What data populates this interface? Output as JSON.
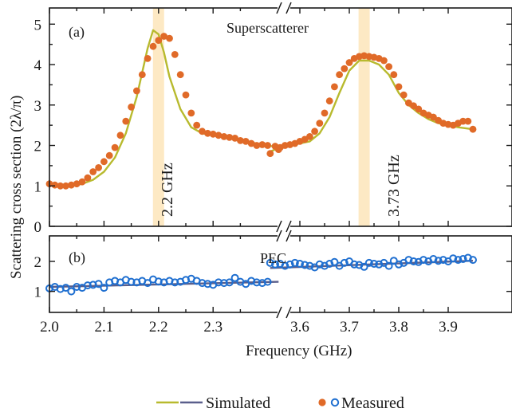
{
  "chart_data": [
    {
      "panel_label": "(a)",
      "title": "Superscatterer",
      "type": "line",
      "ylabel": "Scattering cross section (2λ/π)",
      "ylim": [
        0,
        5.4
      ],
      "yticks": [
        0,
        1,
        2,
        3,
        4,
        5
      ],
      "xlabel": "Frequency (GHz)",
      "x_segments": [
        [
          2.0,
          2.42
        ],
        [
          3.54,
          3.95
        ]
      ],
      "highlight_bands": [
        {
          "center": 2.2,
          "label": "2.2 GHz",
          "color": "#fde9c4"
        },
        {
          "center": 3.73,
          "label": "3.73 GHz",
          "color": "#fde9c4"
        }
      ],
      "series": [
        {
          "name": "Simulated",
          "style": "line",
          "color": "#b8ba2e",
          "segments": [
            {
              "x": [
                2.0,
                2.02,
                2.04,
                2.06,
                2.08,
                2.1,
                2.12,
                2.14,
                2.16,
                2.18,
                2.19,
                2.2,
                2.21,
                2.22,
                2.24,
                2.26,
                2.28,
                2.3,
                2.32,
                2.34,
                2.36,
                2.38,
                2.4,
                2.42
              ],
              "y": [
                1.05,
                1.0,
                1.0,
                1.05,
                1.15,
                1.35,
                1.7,
                2.3,
                3.2,
                4.4,
                4.85,
                4.75,
                4.3,
                3.7,
                2.9,
                2.45,
                2.3,
                2.25,
                2.2,
                2.15,
                2.1,
                2.05,
                2.0,
                1.95
              ]
            },
            {
              "x": [
                3.54,
                3.56,
                3.58,
                3.6,
                3.62,
                3.64,
                3.66,
                3.68,
                3.7,
                3.72,
                3.74,
                3.76,
                3.78,
                3.8,
                3.82,
                3.84,
                3.86,
                3.88,
                3.9,
                3.92,
                3.95
              ],
              "y": [
                1.85,
                1.95,
                2.0,
                2.05,
                2.1,
                2.3,
                2.7,
                3.3,
                3.85,
                4.1,
                4.1,
                4.0,
                3.75,
                3.3,
                3.0,
                2.8,
                2.65,
                2.55,
                2.5,
                2.45,
                2.4
              ]
            }
          ]
        },
        {
          "name": "Measured",
          "style": "markers-filled",
          "color": "#e06a28",
          "segments": [
            {
              "x": [
                2.0,
                2.01,
                2.02,
                2.03,
                2.04,
                2.05,
                2.06,
                2.07,
                2.08,
                2.09,
                2.1,
                2.11,
                2.12,
                2.13,
                2.14,
                2.15,
                2.16,
                2.17,
                2.18,
                2.19,
                2.2,
                2.21,
                2.22,
                2.23,
                2.24,
                2.25,
                2.26,
                2.27,
                2.28,
                2.29,
                2.3,
                2.31,
                2.32,
                2.33,
                2.34,
                2.35,
                2.36,
                2.37,
                2.38,
                2.39,
                2.4,
                2.42
              ],
              "y": [
                1.05,
                1.02,
                1.0,
                1.0,
                1.02,
                1.05,
                1.1,
                1.2,
                1.35,
                1.45,
                1.6,
                1.75,
                1.95,
                2.25,
                2.6,
                2.95,
                3.35,
                3.75,
                4.15,
                4.45,
                4.6,
                4.7,
                4.65,
                4.25,
                3.75,
                3.25,
                2.8,
                2.5,
                2.35,
                2.3,
                2.28,
                2.25,
                2.22,
                2.2,
                2.18,
                2.12,
                2.1,
                2.05,
                2.0,
                2.02,
                2.0,
                1.9
              ]
            },
            {
              "x": [
                3.54,
                3.55,
                3.56,
                3.57,
                3.58,
                3.59,
                3.6,
                3.61,
                3.62,
                3.63,
                3.64,
                3.65,
                3.66,
                3.67,
                3.68,
                3.69,
                3.7,
                3.71,
                3.72,
                3.73,
                3.74,
                3.75,
                3.76,
                3.77,
                3.78,
                3.79,
                3.8,
                3.81,
                3.82,
                3.83,
                3.84,
                3.85,
                3.86,
                3.87,
                3.88,
                3.89,
                3.9,
                3.91,
                3.92,
                3.93,
                3.94,
                3.95
              ],
              "y": [
                1.8,
                1.98,
                1.95,
                2.0,
                2.02,
                2.05,
                2.1,
                2.15,
                2.22,
                2.35,
                2.55,
                2.8,
                3.1,
                3.45,
                3.75,
                3.9,
                4.05,
                4.15,
                4.2,
                4.22,
                4.2,
                4.18,
                4.15,
                4.1,
                3.95,
                3.75,
                3.45,
                3.25,
                3.05,
                2.98,
                2.9,
                2.8,
                2.75,
                2.7,
                2.62,
                2.55,
                2.52,
                2.5,
                2.55,
                2.6,
                2.6,
                2.4
              ]
            }
          ]
        }
      ]
    },
    {
      "panel_label": "(b)",
      "title": "PEC",
      "type": "line",
      "ylim": [
        0.3,
        2.85
      ],
      "yticks": [
        1,
        2
      ],
      "x_segments": [
        [
          2.0,
          2.42
        ],
        [
          3.54,
          3.95
        ]
      ],
      "xticks_left": [
        "2.0",
        "2.1",
        "2.2",
        "2.3"
      ],
      "xticks_right": [
        "3.6",
        "3.7",
        "3.8",
        "3.9"
      ],
      "series": [
        {
          "name": "Simulated",
          "style": "line",
          "color": "#5a5f8c",
          "segments": [
            {
              "x": [
                2.0,
                2.42
              ],
              "y": [
                1.15,
                1.32
              ]
            },
            {
              "x": [
                3.54,
                3.95
              ],
              "y": [
                1.78,
                2.02
              ]
            }
          ]
        },
        {
          "name": "Measured",
          "style": "markers-open",
          "color": "#1f6fd0",
          "segments": [
            {
              "x": [
                2.0,
                2.01,
                2.02,
                2.03,
                2.04,
                2.05,
                2.06,
                2.07,
                2.08,
                2.09,
                2.1,
                2.11,
                2.12,
                2.13,
                2.14,
                2.15,
                2.16,
                2.17,
                2.18,
                2.19,
                2.2,
                2.21,
                2.22,
                2.23,
                2.24,
                2.25,
                2.26,
                2.27,
                2.28,
                2.29,
                2.3,
                2.31,
                2.32,
                2.33,
                2.34,
                2.35,
                2.36,
                2.37,
                2.38,
                2.39,
                2.4
              ],
              "y": [
                1.1,
                1.15,
                1.08,
                1.12,
                1.0,
                1.15,
                1.12,
                1.2,
                1.22,
                1.25,
                1.12,
                1.3,
                1.35,
                1.3,
                1.38,
                1.32,
                1.3,
                1.35,
                1.28,
                1.4,
                1.33,
                1.3,
                1.35,
                1.3,
                1.32,
                1.38,
                1.42,
                1.35,
                1.28,
                1.25,
                1.22,
                1.3,
                1.28,
                1.3,
                1.45,
                1.32,
                1.25,
                1.35,
                1.3,
                1.28,
                1.32
              ]
            },
            {
              "x": [
                3.54,
                3.55,
                3.56,
                3.57,
                3.58,
                3.59,
                3.6,
                3.61,
                3.62,
                3.63,
                3.64,
                3.65,
                3.66,
                3.67,
                3.68,
                3.69,
                3.7,
                3.71,
                3.72,
                3.73,
                3.74,
                3.75,
                3.76,
                3.77,
                3.78,
                3.79,
                3.8,
                3.81,
                3.82,
                3.83,
                3.84,
                3.85,
                3.86,
                3.87,
                3.88,
                3.89,
                3.9,
                3.91,
                3.92,
                3.93,
                3.94,
                3.95
              ],
              "y": [
                1.95,
                1.9,
                1.92,
                1.85,
                1.9,
                1.95,
                1.92,
                1.88,
                1.85,
                1.8,
                1.9,
                1.85,
                1.92,
                1.98,
                1.85,
                1.95,
                2.0,
                1.9,
                1.88,
                1.82,
                1.95,
                1.92,
                1.9,
                1.95,
                1.85,
                2.02,
                1.9,
                1.95,
                2.05,
                2.0,
                1.98,
                2.05,
                2.0,
                2.08,
                2.02,
                2.05,
                2.0,
                2.1,
                2.05,
                2.08,
                2.12,
                2.05
              ]
            }
          ]
        }
      ]
    }
  ],
  "legend": {
    "simulated_label": "Simulated",
    "measured_label": "Measured",
    "simulated_colors": [
      "#b8ba2e",
      "#5a5f8c"
    ],
    "measured_colors": [
      "#e06a28",
      "#1f6fd0"
    ]
  },
  "text": {
    "ylabel": "Scattering cross section (2λ/π)",
    "xlabel": "Frequency (GHz)",
    "panel_a": "(a)",
    "panel_b": "(b)",
    "title_a": "Superscatterer",
    "title_b": "PEC",
    "band1": "2.2 GHz",
    "band2": "3.73 GHz",
    "yticks_a": [
      "0",
      "1",
      "2",
      "3",
      "4",
      "5"
    ],
    "yticks_b": [
      "1",
      "2"
    ],
    "xticks_left": [
      "2.0",
      "2.1",
      "2.2",
      "2.3"
    ],
    "xticks_right": [
      "3.6",
      "3.7",
      "3.8",
      "3.9"
    ]
  }
}
